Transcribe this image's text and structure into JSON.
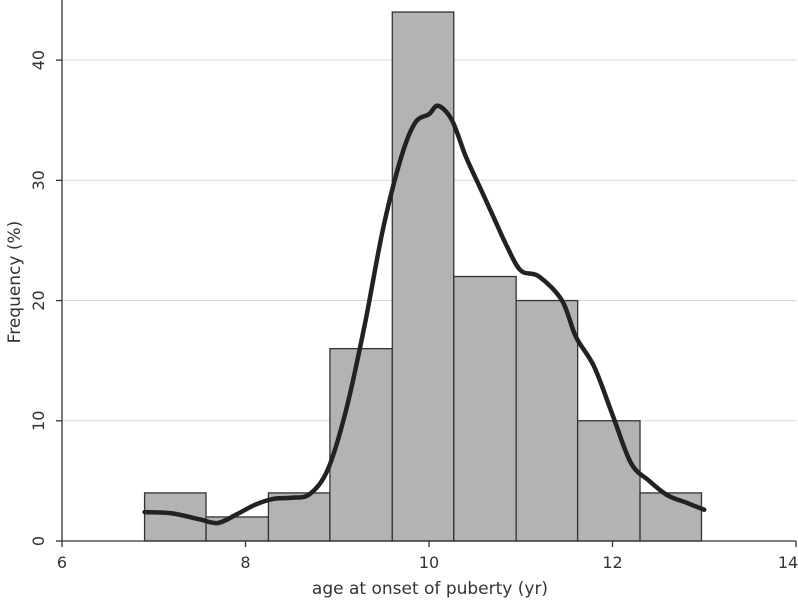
{
  "chart_data": {
    "type": "bar",
    "subtype": "histogram-with-density-curve",
    "xlabel": "age at onset of puberty (yr)",
    "ylabel": "Frequency (%)",
    "xlim": [
      6,
      14
    ],
    "ylim": [
      0,
      45
    ],
    "xticks": [
      6,
      8,
      10,
      12,
      14
    ],
    "yticks": [
      0,
      10,
      20,
      30,
      40
    ],
    "grid": true,
    "bar_color": "#b3b3b3",
    "bar_edge_color": "#333333",
    "curve_color": "#222222",
    "grid_color": "#d9d9d9",
    "bins": [
      {
        "x0": 6.9,
        "x1": 7.57,
        "value": 4
      },
      {
        "x0": 7.57,
        "x1": 8.25,
        "value": 2
      },
      {
        "x0": 8.25,
        "x1": 8.92,
        "value": 4
      },
      {
        "x0": 8.92,
        "x1": 9.6,
        "value": 16
      },
      {
        "x0": 9.6,
        "x1": 10.27,
        "value": 44
      },
      {
        "x0": 10.27,
        "x1": 10.95,
        "value": 22
      },
      {
        "x0": 10.95,
        "x1": 11.62,
        "value": 20
      },
      {
        "x0": 11.62,
        "x1": 12.3,
        "value": 10
      },
      {
        "x0": 12.3,
        "x1": 12.97,
        "value": 4
      }
    ],
    "density_curve": [
      [
        6.9,
        2.4
      ],
      [
        7.2,
        2.3
      ],
      [
        7.5,
        1.8
      ],
      [
        7.7,
        1.5
      ],
      [
        7.9,
        2.2
      ],
      [
        8.1,
        3.0
      ],
      [
        8.3,
        3.5
      ],
      [
        8.5,
        3.6
      ],
      [
        8.7,
        3.9
      ],
      [
        8.9,
        6.0
      ],
      [
        9.1,
        11.0
      ],
      [
        9.3,
        18.0
      ],
      [
        9.5,
        26.0
      ],
      [
        9.7,
        32.0
      ],
      [
        9.85,
        34.8
      ],
      [
        10.0,
        35.5
      ],
      [
        10.1,
        36.2
      ],
      [
        10.25,
        35.0
      ],
      [
        10.4,
        32.0
      ],
      [
        10.55,
        29.5
      ],
      [
        10.7,
        27.0
      ],
      [
        10.85,
        24.5
      ],
      [
        11.0,
        22.5
      ],
      [
        11.2,
        22.0
      ],
      [
        11.45,
        20.0
      ],
      [
        11.6,
        17.0
      ],
      [
        11.8,
        14.5
      ],
      [
        12.0,
        10.5
      ],
      [
        12.2,
        6.5
      ],
      [
        12.4,
        5.0
      ],
      [
        12.6,
        3.8
      ],
      [
        12.8,
        3.2
      ],
      [
        13.0,
        2.6
      ]
    ]
  }
}
